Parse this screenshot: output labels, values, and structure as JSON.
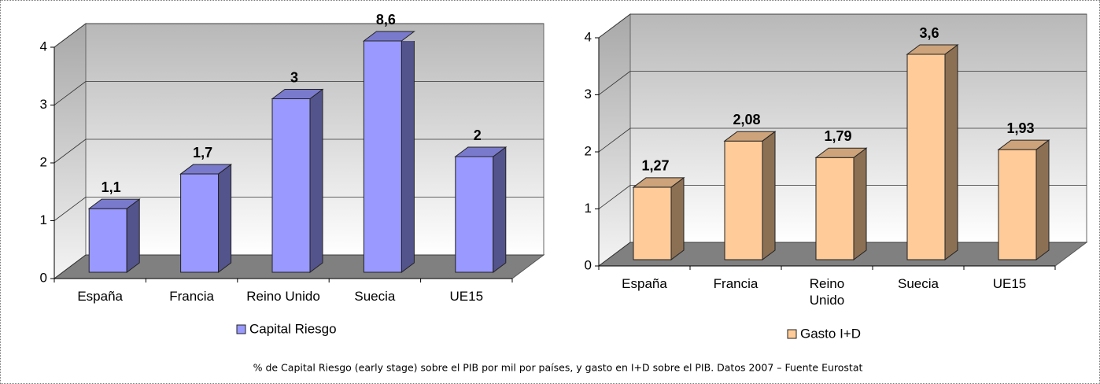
{
  "chart_data": [
    {
      "type": "bar3d",
      "categories": [
        "España",
        "Francia",
        "Reino Unido",
        "Suecia",
        "UE15"
      ],
      "series": [
        {
          "name": "Capital Riesgo",
          "color": "#9999ff",
          "values": [
            1.1,
            1.7,
            3,
            8.6,
            2
          ],
          "value_labels": [
            "1,1",
            "1,7",
            "3",
            "8,6",
            "2"
          ]
        }
      ],
      "ylim": [
        0,
        4
      ],
      "yticks": [
        0,
        1,
        2,
        3,
        4
      ],
      "grid": true,
      "legend": "bottom"
    },
    {
      "type": "bar3d",
      "categories": [
        "España",
        "Francia",
        "Reino Unido",
        "Suecia",
        "UE15"
      ],
      "series": [
        {
          "name": "Gasto I+D",
          "color": "#ffcc99",
          "values": [
            1.27,
            2.08,
            1.79,
            3.6,
            1.93
          ],
          "value_labels": [
            "1,27",
            "2,08",
            "1,79",
            "3,6",
            "1,93"
          ]
        }
      ],
      "ylim": [
        0,
        4
      ],
      "yticks": [
        0,
        1,
        2,
        3,
        4
      ],
      "grid": true,
      "legend": "bottom"
    }
  ],
  "caption": "% de Capital Riesgo (early stage) sobre el PIB por mil por países, y gasto en I+D sobre el PIB. Datos 2007 – Fuente Eurostat"
}
